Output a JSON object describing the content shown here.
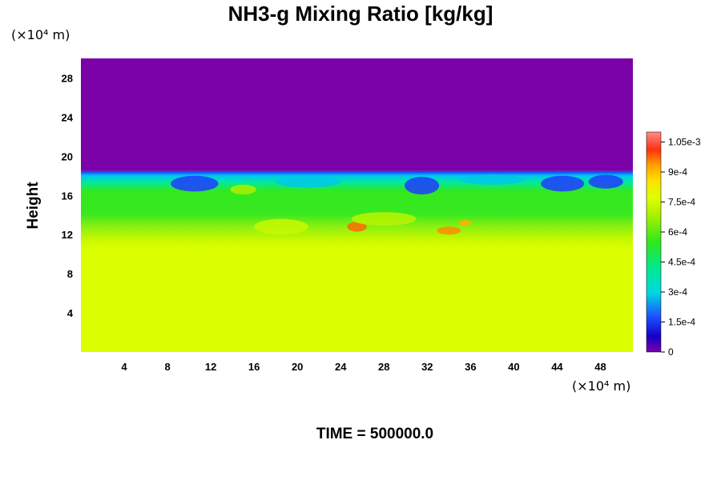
{
  "chart_data": {
    "type": "heatmap",
    "title": "NH3-g Mixing Ratio [kg/kg]",
    "xlabel": "",
    "ylabel": "Height",
    "x_unit": "(×10⁴ m)",
    "y_unit": "(×10⁴ m)",
    "x_ticks": [
      "4",
      "8",
      "12",
      "16",
      "20",
      "24",
      "28",
      "32",
      "36",
      "40",
      "44",
      "48"
    ],
    "y_ticks": [
      "4",
      "8",
      "12",
      "16",
      "20",
      "24",
      "28"
    ],
    "xlim": [
      0,
      51
    ],
    "ylim": [
      0,
      30
    ],
    "colorbar": {
      "ticks": [
        "0",
        "1.5e-4",
        "3e-4",
        "4.5e-4",
        "6e-4",
        "7.5e-4",
        "9e-4",
        "1.05e-3"
      ],
      "range": [
        0,
        0.0011
      ]
    },
    "field_description": {
      "upper_layer": {
        "y_range": [
          18.5,
          30
        ],
        "value": 0
      },
      "transition_layer": {
        "y_range": [
          10.5,
          18.5
        ],
        "value_range": [
          0.0003,
          0.0007
        ]
      },
      "lower_layer": {
        "y_range": [
          0,
          10.5
        ],
        "value": 0.00075
      }
    },
    "annotation": "TIME = 500000.0"
  },
  "colors": {
    "upper": "#7a00a8",
    "lower": "#dcff00",
    "green": "#33e81c",
    "cyan": "#00d8d0",
    "blue": "#1e28ff"
  }
}
